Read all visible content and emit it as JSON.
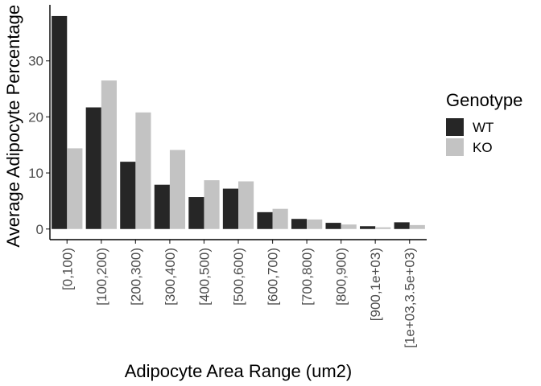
{
  "chart_data": {
    "type": "bar",
    "title": "",
    "xlabel": "Adipocyte Area Range (um2)",
    "ylabel": "Average Adipocyte Percentage (",
    "categories": [
      "[0,100)",
      "[100,200)",
      "[200,300)",
      "[300,400)",
      "[400,500)",
      "[500,600)",
      "[600,700)",
      "[700,800)",
      "[800,900)",
      "[900,1e+03)",
      "[1e+03,3.5e+03)"
    ],
    "series": [
      {
        "name": "WT",
        "color": "#262626",
        "values": [
          38.0,
          21.7,
          12.0,
          7.9,
          5.7,
          7.2,
          3.0,
          1.8,
          1.1,
          0.5,
          1.2
        ]
      },
      {
        "name": "KO",
        "color": "#c3c3c3",
        "values": [
          14.4,
          26.5,
          20.8,
          14.1,
          8.7,
          8.5,
          3.6,
          1.7,
          0.8,
          0.3,
          0.7
        ]
      }
    ],
    "yticks": [
      0,
      10,
      20,
      30
    ],
    "ylim": [
      -1.9,
      40
    ],
    "legend_title": "Genotype",
    "legend_position": "right",
    "grid": false
  }
}
